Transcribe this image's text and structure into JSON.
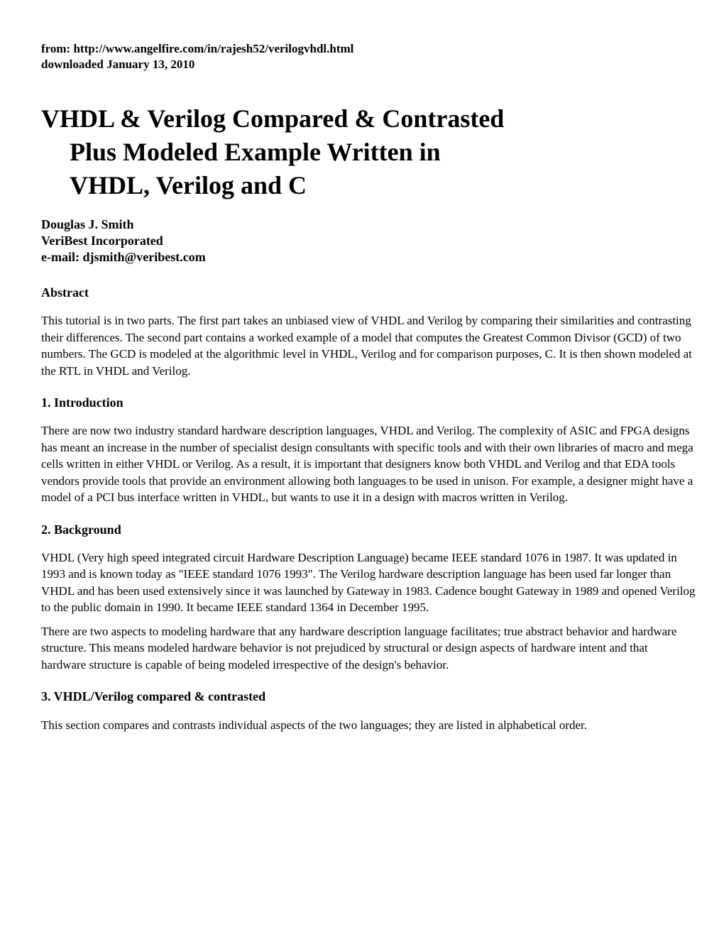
{
  "source": {
    "line1": "from: http://www.angelfire.com/in/rajesh52/verilogvhdl.html",
    "line2": "downloaded January 13, 2010"
  },
  "title": {
    "line1": "VHDL & Verilog Compared & Contrasted",
    "line2": "Plus Modeled Example Written in",
    "line3": "VHDL, Verilog and C"
  },
  "author": {
    "name": "Douglas J. Smith",
    "affiliation": "VeriBest Incorporated",
    "email": "e-mail: djsmith@veribest.com"
  },
  "sections": {
    "abstract": {
      "heading": "Abstract",
      "body": "This tutorial is in two parts. The first part takes an unbiased view of VHDL and Verilog by comparing their similarities and contrasting their differences. The second part contains a worked example of a model that computes the Greatest Common Divisor (GCD) of two numbers. The GCD is modeled at the algorithmic level in VHDL, Verilog and for comparison purposes, C. It is then shown modeled at the RTL in VHDL and Verilog."
    },
    "introduction": {
      "heading": "1. Introduction",
      "body": "There are now two industry standard hardware description languages, VHDL and Verilog. The complexity of ASIC and FPGA designs has meant an increase in the number of specialist design consultants with specific tools and with their own libraries of macro and mega cells written in either VHDL or Verilog. As a result, it is important that designers know both VHDL and Verilog and that EDA tools vendors provide tools that provide an environment allowing both languages to be used in unison. For example, a designer might have a model of a PCI bus interface written in VHDL, but wants to use it in a design with macros written in Verilog."
    },
    "background": {
      "heading": "2. Background",
      "body1": "VHDL (Very high speed integrated circuit Hardware Description Language) became IEEE standard 1076 in 1987. It was updated in 1993 and is known today as \"IEEE standard 1076 1993\". The Verilog hardware description language has been used far longer than VHDL and has been used extensively since it was launched by Gateway in 1983. Cadence bought Gateway in 1989 and opened Verilog to the public domain in 1990. It became IEEE standard 1364 in December 1995.",
      "body2": "There are two aspects to modeling hardware that any hardware description language facilitates; true abstract behavior and hardware structure. This means modeled hardware behavior is not prejudiced by structural or design aspects of hardware intent and that hardware structure is capable of being modeled irrespective of the design's behavior."
    },
    "compared": {
      "heading": "3. VHDL/Verilog compared & contrasted",
      "body": "This section compares and contrasts individual aspects of the two languages; they are listed in alphabetical order."
    }
  }
}
